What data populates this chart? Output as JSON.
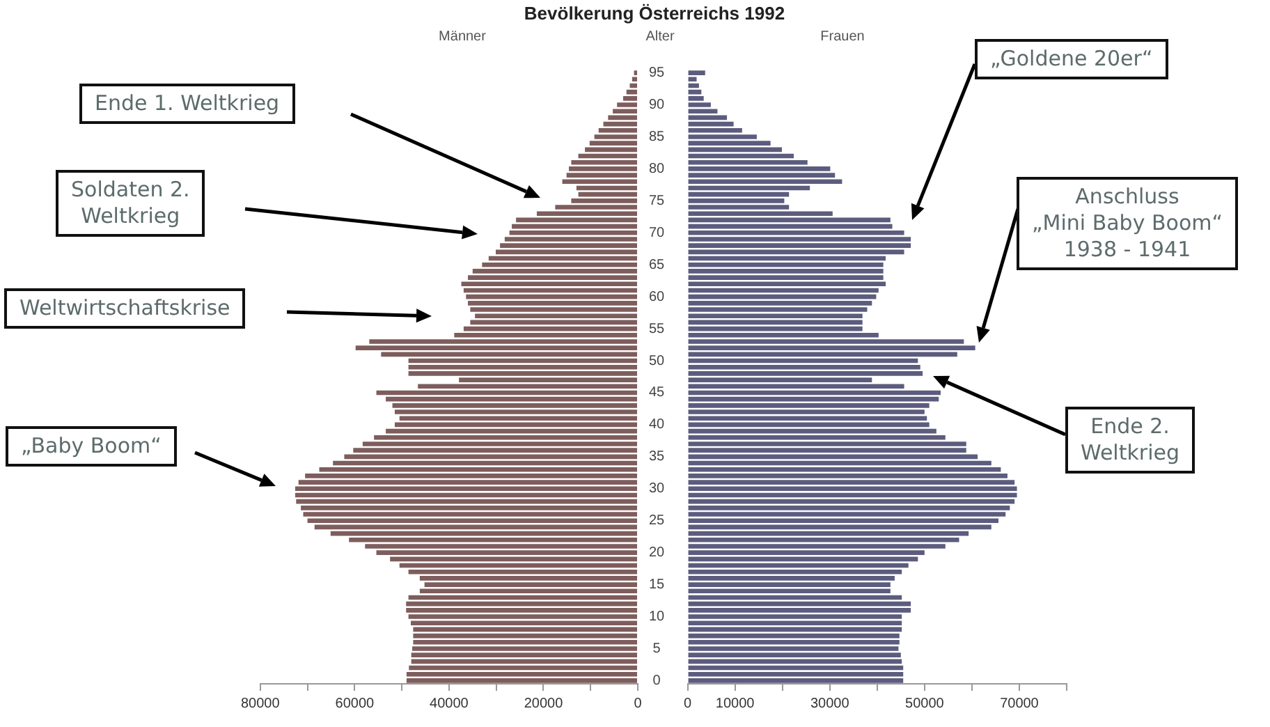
{
  "chart_data": [
    {
      "type": "bar",
      "orientation": "horizontal",
      "title": "Bevölkerung Österreichs 1992",
      "subtitle": "Männer",
      "ylabel": "Alter",
      "color": "#7e5d5d",
      "categories": [
        "95",
        null,
        null,
        null,
        null,
        "90",
        null,
        null,
        null,
        null,
        "85",
        null,
        null,
        null,
        null,
        "80",
        null,
        null,
        null,
        null,
        "75",
        null,
        null,
        null,
        null,
        "70",
        null,
        null,
        null,
        null,
        "65",
        null,
        null,
        null,
        null,
        "60",
        null,
        null,
        null,
        null,
        "55",
        null,
        null,
        null,
        null,
        "50",
        null,
        null,
        null,
        null,
        "45",
        null,
        null,
        null,
        null,
        "40",
        null,
        null,
        null,
        null,
        "35",
        null,
        null,
        null,
        null,
        "30",
        null,
        null,
        null,
        null,
        "25",
        null,
        null,
        null,
        null,
        "20",
        null,
        null,
        null,
        null,
        "15",
        null,
        null,
        null,
        null,
        "10",
        null,
        null,
        null,
        null,
        "5",
        null,
        null,
        null,
        null,
        "0"
      ],
      "values": [
        800,
        1200,
        1700,
        2400,
        3100,
        4400,
        5300,
        6300,
        7300,
        8300,
        9200,
        10200,
        11200,
        12600,
        14100,
        14600,
        15100,
        16000,
        13000,
        12600,
        14100,
        17500,
        21400,
        25800,
        26700,
        27200,
        28200,
        29200,
        30100,
        31600,
        33000,
        35000,
        36000,
        37400,
        36900,
        36400,
        36000,
        35500,
        34500,
        35500,
        36900,
        38900,
        56900,
        59800,
        54400,
        48600,
        48600,
        48600,
        37900,
        46600,
        55400,
        53400,
        52000,
        51500,
        50500,
        51500,
        53400,
        55900,
        58300,
        60300,
        62200,
        64600,
        67500,
        70500,
        71900,
        72600,
        72600,
        72400,
        71400,
        70900,
        70000,
        68500,
        65100,
        61200,
        57800,
        55400,
        52500,
        50500,
        48600,
        46200,
        45200,
        46200,
        48600,
        49100,
        49100,
        48600,
        48100,
        47600,
        47600,
        47600,
        47800,
        48000,
        48000,
        48500,
        49000,
        49000
      ],
      "xlim": [
        80000,
        0
      ],
      "xticks": [
        80000,
        {
          "value": 70000,
          "label": null
        },
        60000,
        {
          "value": 50000,
          "label": null
        },
        40000,
        {
          "value": 30000,
          "label": null
        },
        20000,
        {
          "value": 10000,
          "label": null
        },
        0
      ],
      "annotations": [
        "Ende 1. Weltkrieg",
        "Soldaten 2.\nWeltkrieg",
        "Weltwirtschaftskrise",
        "„Baby Boom“"
      ]
    },
    {
      "type": "bar",
      "orientation": "horizontal",
      "subtitle": "Frauen",
      "color": "#5c5c7e",
      "tick_labels": "x",
      "categories": [
        "95",
        null,
        null,
        null,
        null,
        "90",
        null,
        null,
        null,
        null,
        "85",
        null,
        null,
        null,
        null,
        "80",
        null,
        null,
        null,
        null,
        "75",
        null,
        null,
        null,
        null,
        "70",
        null,
        null,
        null,
        null,
        "65",
        null,
        null,
        null,
        null,
        "60",
        null,
        null,
        null,
        null,
        "55",
        null,
        null,
        null,
        null,
        "50",
        null,
        null,
        null,
        null,
        "45",
        null,
        null,
        null,
        null,
        "40",
        null,
        null,
        null,
        null,
        "35",
        null,
        null,
        null,
        null,
        "30",
        null,
        null,
        null,
        null,
        "25",
        null,
        null,
        null,
        null,
        "20",
        null,
        null,
        null,
        null,
        "15",
        null,
        null,
        null,
        null,
        "10",
        null,
        null,
        null,
        null,
        "5",
        null,
        null,
        null,
        null,
        "0"
      ],
      "values": [
        3700,
        1900,
        2400,
        2900,
        3400,
        4900,
        6300,
        8300,
        9700,
        11500,
        14600,
        17500,
        19900,
        22400,
        25300,
        30100,
        31100,
        32600,
        25800,
        21400,
        20400,
        21400,
        30600,
        42800,
        43200,
        45700,
        47100,
        47100,
        45700,
        41800,
        41300,
        41300,
        41300,
        41800,
        40300,
        39800,
        38900,
        37900,
        36900,
        36900,
        36900,
        40300,
        58300,
        60700,
        56900,
        48600,
        49100,
        49600,
        38900,
        45700,
        53400,
        53000,
        51000,
        50000,
        50500,
        51000,
        52500,
        54400,
        58800,
        58800,
        61200,
        64100,
        66100,
        67500,
        69000,
        69500,
        69500,
        69000,
        68000,
        67100,
        65600,
        64100,
        59300,
        57300,
        54400,
        50000,
        48600,
        46600,
        45200,
        43700,
        42800,
        42800,
        45200,
        47100,
        47100,
        45200,
        45200,
        45200,
        44700,
        44700,
        44500,
        45000,
        45200,
        45500,
        45500,
        45500
      ],
      "xlim": [
        0,
        80000
      ],
      "xticks": [
        0,
        10000,
        {
          "value": 20000,
          "label": null
        },
        30000,
        {
          "value": 40000,
          "label": null
        },
        50000,
        {
          "value": 60000,
          "label": null
        },
        70000,
        {
          "value": 80000,
          "label": null
        }
      ],
      "annotations": [
        "„Goldene 20er“",
        "Anschluss\n„Mini Baby Boom“\n1938 - 1941",
        "Ende 2.\nWeltkrieg"
      ]
    }
  ]
}
